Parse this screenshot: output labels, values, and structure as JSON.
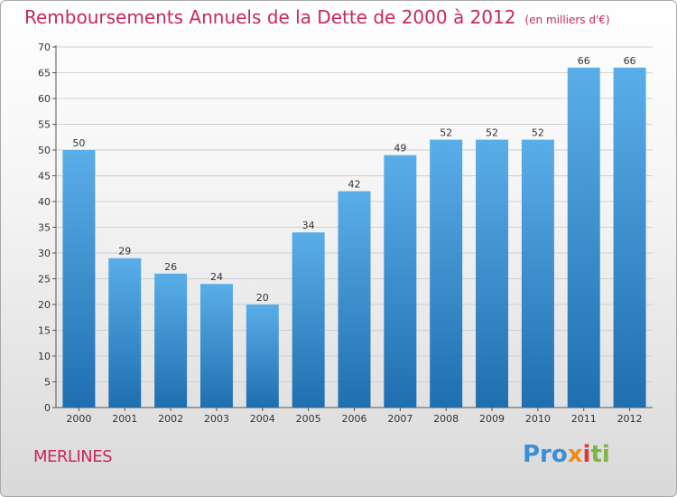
{
  "header": {
    "title": "Remboursements Annuels de la Dette de 2000 à 2012",
    "unit": "(en milliers d'€)"
  },
  "footer": {
    "location": "MERLINES",
    "logo": [
      "Pro",
      "x",
      "i",
      "ti"
    ]
  },
  "colors": {
    "title": "#c8285c",
    "bar_top": "#5aaee8",
    "bar_bottom": "#1f6fb0"
  },
  "chart_data": {
    "type": "bar",
    "categories": [
      "2000",
      "2001",
      "2002",
      "2003",
      "2004",
      "2005",
      "2006",
      "2007",
      "2008",
      "2009",
      "2010",
      "2011",
      "2012"
    ],
    "values": [
      50,
      29,
      26,
      24,
      20,
      34,
      42,
      49,
      52,
      52,
      52,
      66,
      66
    ],
    "title": "Remboursements Annuels de la Dette de 2000 à 2012",
    "xlabel": "",
    "ylabel": "",
    "ylim": [
      0,
      70
    ],
    "yticks": [
      0,
      5,
      10,
      15,
      20,
      25,
      30,
      35,
      40,
      45,
      50,
      55,
      60,
      65,
      70
    ],
    "grid": true,
    "data_labels": true
  }
}
